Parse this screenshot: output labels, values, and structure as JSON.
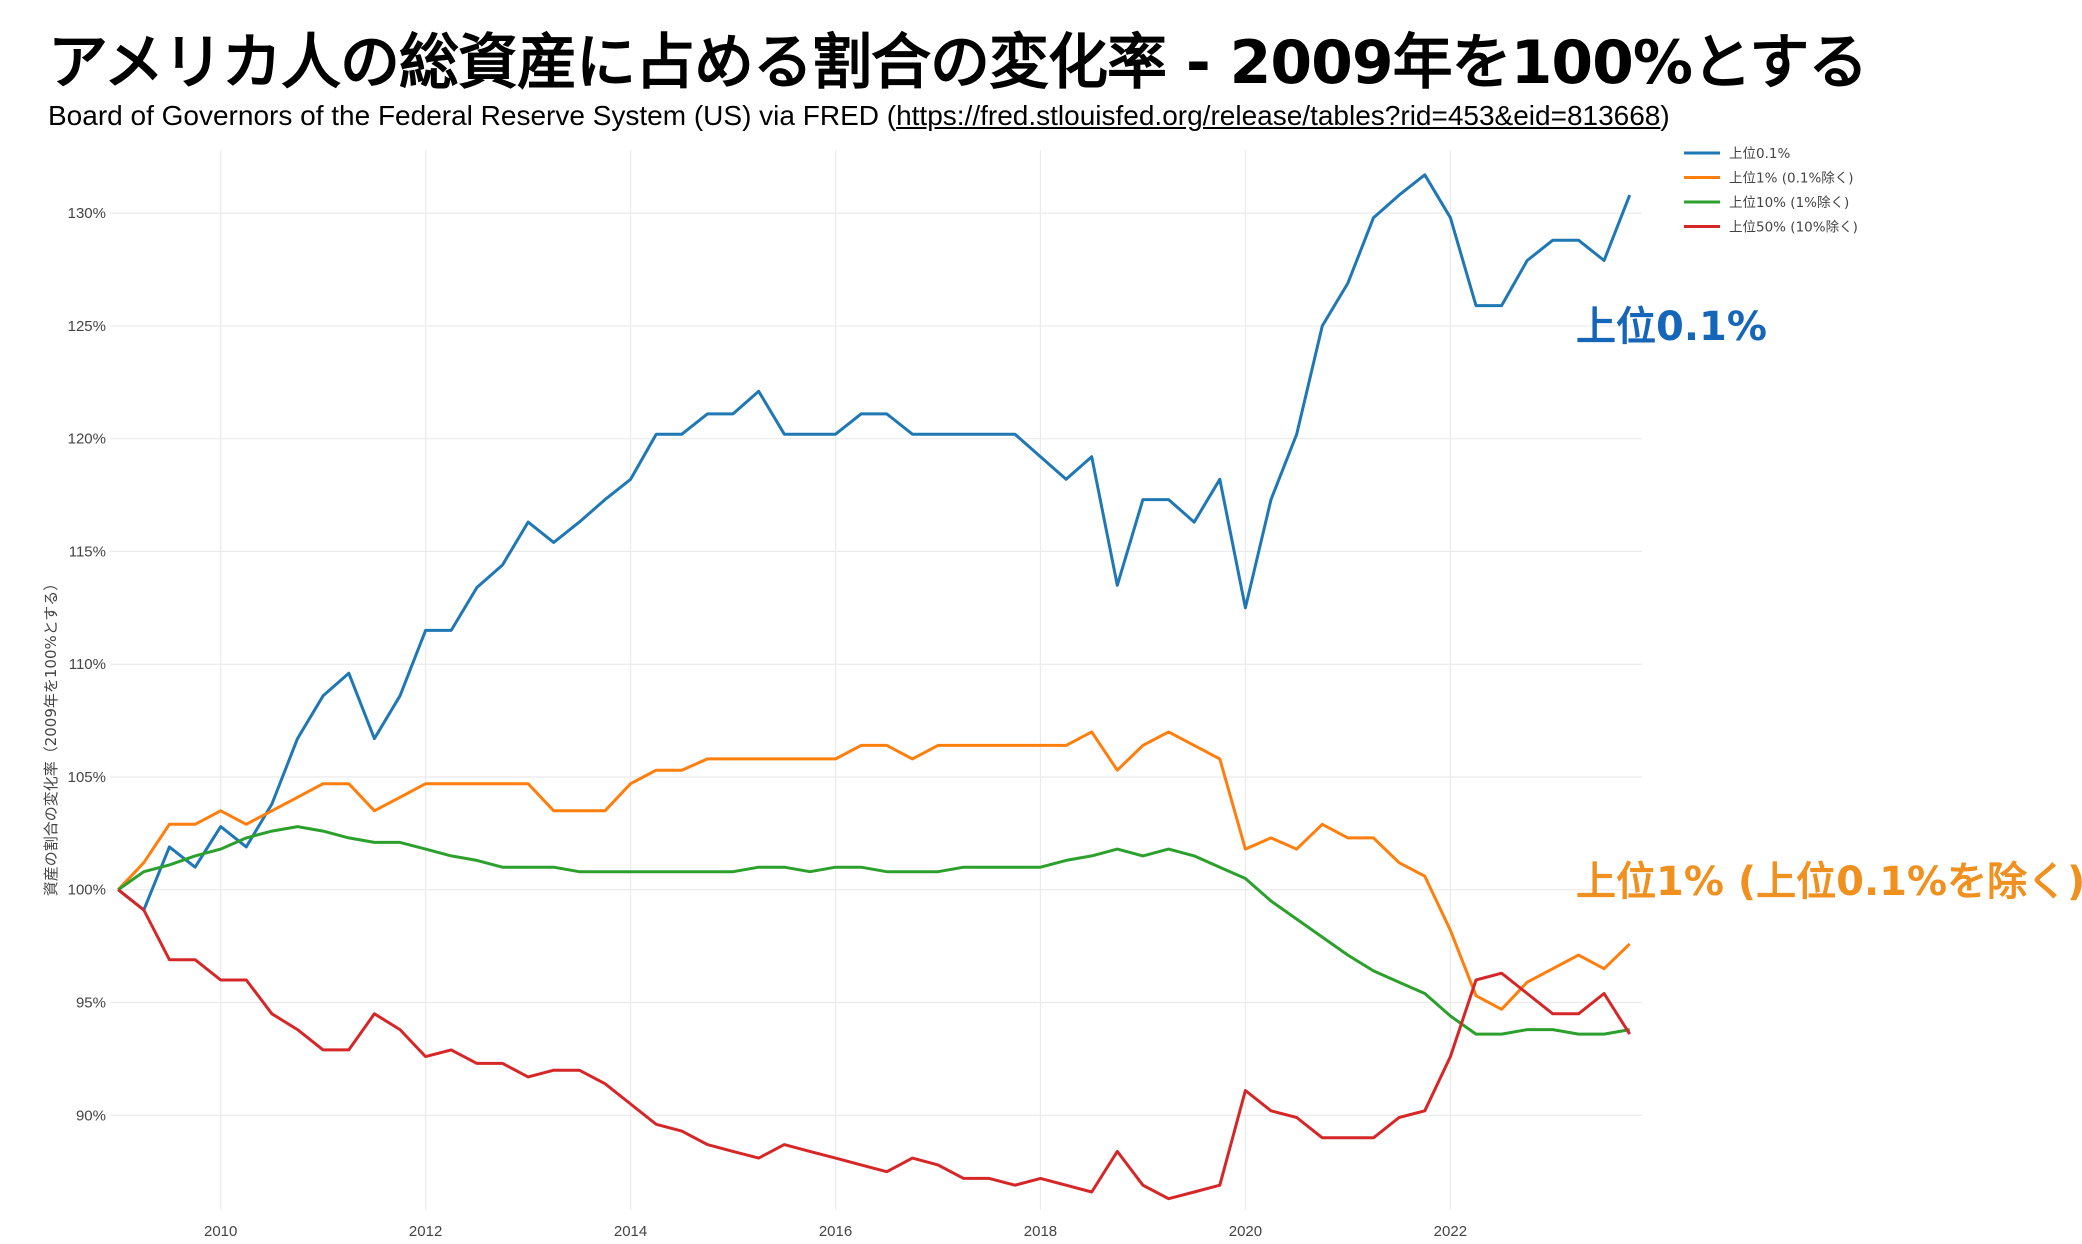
{
  "header": {
    "title": "アメリカ人の総資産に占める割合の変化率 - 2009年を100%とする",
    "subtitle_prefix": "Board of Governors of the Federal Reserve System (US) via FRED (",
    "subtitle_link": "https://fred.stlouisfed.org/release/tables?rid=453&eid=813668",
    "subtitle_suffix": ")"
  },
  "colors": {
    "top01": "#1f77b4",
    "top1": "#ff7f0e",
    "top10": "#2ca02c",
    "top50": "#d62728",
    "anno_blue": "#1565b8",
    "anno_orange": "#f0901e",
    "grid": "#ebebeb"
  },
  "chart_data": {
    "type": "line",
    "title": "アメリカ人の総資産に占める割合の変化率 - 2009年を100%とする",
    "xlabel": "",
    "ylabel": "資産の割合の変化率（2009年を100%とする）",
    "xlim": [
      2008.92,
      2023.87
    ],
    "ylim": [
      85.8,
      132.8
    ],
    "x_ticks": [
      2010,
      2012,
      2014,
      2016,
      2018,
      2020,
      2022
    ],
    "x_tick_labels": [
      "2010",
      "2012",
      "2014",
      "2016",
      "2018",
      "2020",
      "2022"
    ],
    "y_ticks": [
      90,
      95,
      100,
      105,
      110,
      115,
      120,
      125,
      130
    ],
    "y_tick_labels": [
      "90%",
      "95%",
      "100%",
      "105%",
      "110%",
      "115%",
      "120%",
      "125%",
      "130%"
    ],
    "grid": true,
    "legend_position": "top-right",
    "x": [
      2009.0,
      2009.25,
      2009.5,
      2009.75,
      2010.0,
      2010.25,
      2010.5,
      2010.75,
      2011.0,
      2011.25,
      2011.5,
      2011.75,
      2012.0,
      2012.25,
      2012.5,
      2012.75,
      2013.0,
      2013.25,
      2013.5,
      2013.75,
      2014.0,
      2014.25,
      2014.5,
      2014.75,
      2015.0,
      2015.25,
      2015.5,
      2015.75,
      2016.0,
      2016.25,
      2016.5,
      2016.75,
      2017.0,
      2017.25,
      2017.5,
      2017.75,
      2018.0,
      2018.25,
      2018.5,
      2018.75,
      2019.0,
      2019.25,
      2019.5,
      2019.75,
      2020.0,
      2020.25,
      2020.5,
      2020.75,
      2021.0,
      2021.25,
      2021.5,
      2021.75,
      2022.0,
      2022.25,
      2022.5,
      2022.75,
      2023.0,
      2023.25,
      2023.5,
      2023.75
    ],
    "series": [
      {
        "name": "上位0.1%",
        "color": "#1f77b4",
        "values": [
          100.0,
          99.1,
          101.9,
          101.0,
          102.8,
          101.9,
          103.8,
          106.7,
          108.6,
          109.6,
          106.7,
          108.6,
          111.5,
          111.5,
          113.4,
          114.4,
          116.3,
          115.4,
          116.3,
          117.3,
          118.2,
          120.2,
          120.2,
          121.1,
          121.1,
          122.1,
          120.2,
          120.2,
          120.2,
          121.1,
          121.1,
          120.2,
          120.2,
          120.2,
          120.2,
          120.2,
          119.2,
          118.2,
          119.2,
          113.5,
          117.3,
          117.3,
          116.3,
          118.2,
          112.5,
          117.3,
          120.2,
          125.0,
          126.9,
          129.8,
          130.8,
          131.7,
          129.8,
          125.9,
          125.9,
          127.9,
          128.8,
          128.8,
          127.9,
          130.8
        ]
      },
      {
        "name": "上位1% (0.1%除く)",
        "color": "#ff7f0e",
        "values": [
          100.0,
          101.2,
          102.9,
          102.9,
          103.5,
          102.9,
          103.5,
          104.1,
          104.7,
          104.7,
          103.5,
          104.1,
          104.7,
          104.7,
          104.7,
          104.7,
          104.7,
          103.5,
          103.5,
          103.5,
          104.7,
          105.3,
          105.3,
          105.8,
          105.8,
          105.8,
          105.8,
          105.8,
          105.8,
          106.4,
          106.4,
          105.8,
          106.4,
          106.4,
          106.4,
          106.4,
          106.4,
          106.4,
          107.0,
          105.3,
          106.4,
          107.0,
          106.4,
          105.8,
          101.8,
          102.3,
          101.8,
          102.9,
          102.3,
          102.3,
          101.2,
          100.6,
          98.2,
          95.3,
          94.7,
          95.9,
          96.5,
          97.1,
          96.5,
          97.6
        ]
      },
      {
        "name": "上位10% (1%除く)",
        "color": "#2ca02c",
        "values": [
          100.0,
          100.8,
          101.1,
          101.5,
          101.8,
          102.3,
          102.6,
          102.8,
          102.6,
          102.3,
          102.1,
          102.1,
          101.8,
          101.5,
          101.3,
          101.0,
          101.0,
          101.0,
          100.8,
          100.8,
          100.8,
          100.8,
          100.8,
          100.8,
          100.8,
          101.0,
          101.0,
          100.8,
          101.0,
          101.0,
          100.8,
          100.8,
          100.8,
          101.0,
          101.0,
          101.0,
          101.0,
          101.3,
          101.5,
          101.8,
          101.5,
          101.8,
          101.5,
          101.0,
          100.5,
          99.5,
          98.7,
          97.9,
          97.1,
          96.4,
          95.9,
          95.4,
          94.4,
          93.6,
          93.6,
          93.8,
          93.8,
          93.6,
          93.6,
          93.8
        ]
      },
      {
        "name": "上位50% (10%除く)",
        "color": "#d62728",
        "values": [
          100.0,
          99.1,
          96.9,
          96.9,
          96.0,
          96.0,
          94.5,
          93.8,
          92.9,
          92.9,
          94.5,
          93.8,
          92.6,
          92.9,
          92.3,
          92.3,
          91.7,
          92.0,
          92.0,
          91.4,
          90.5,
          89.6,
          89.3,
          88.7,
          88.4,
          88.1,
          88.7,
          88.4,
          88.1,
          87.8,
          87.5,
          88.1,
          87.8,
          87.2,
          87.2,
          86.9,
          87.2,
          86.9,
          86.6,
          88.4,
          86.9,
          86.3,
          86.6,
          86.9,
          91.1,
          90.2,
          89.9,
          89.0,
          89.0,
          89.0,
          89.9,
          90.2,
          92.6,
          96.0,
          96.3,
          95.4,
          94.5,
          94.5,
          95.4,
          93.6
        ]
      }
    ],
    "annotations": [
      {
        "id": "top01",
        "text": "上位0.1%"
      },
      {
        "id": "top1",
        "text": "上位1% (上位0.1%を除く)"
      }
    ]
  }
}
